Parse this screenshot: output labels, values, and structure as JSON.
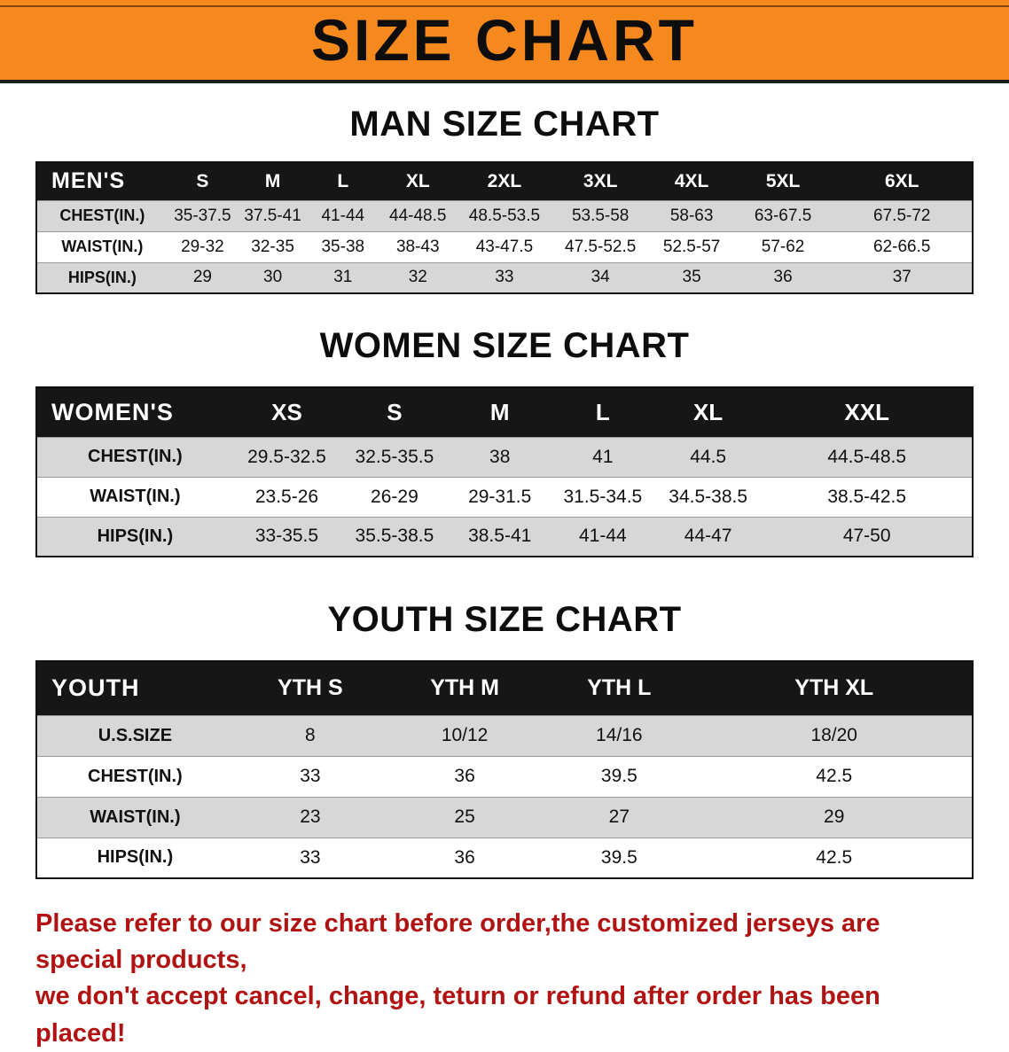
{
  "banner": {
    "title": "SIZE CHART"
  },
  "men": {
    "heading": "MAN SIZE CHART",
    "table": {
      "header": [
        "MEN'S",
        "S",
        "M",
        "L",
        "XL",
        "2XL",
        "3XL",
        "4XL",
        "5XL",
        "6XL"
      ],
      "rows": [
        [
          "CHEST(IN.)",
          "35-37.5",
          "37.5-41",
          "41-44",
          "44-48.5",
          "48.5-53.5",
          "53.5-58",
          "58-63",
          "63-67.5",
          "67.5-72"
        ],
        [
          "WAIST(IN.)",
          "29-32",
          "32-35",
          "35-38",
          "38-43",
          "43-47.5",
          "47.5-52.5",
          "52.5-57",
          "57-62",
          "62-66.5"
        ],
        [
          "HIPS(IN.)",
          "29",
          "30",
          "31",
          "32",
          "33",
          "34",
          "35",
          "36",
          "37"
        ]
      ]
    }
  },
  "women": {
    "heading": "WOMEN SIZE CHART",
    "table": {
      "header": [
        "WOMEN'S",
        "XS",
        "S",
        "M",
        "L",
        "XL",
        "XXL"
      ],
      "rows": [
        [
          "CHEST(IN.)",
          "29.5-32.5",
          "32.5-35.5",
          "38",
          "41",
          "44.5",
          "44.5-48.5"
        ],
        [
          "WAIST(IN.)",
          "23.5-26",
          "26-29",
          "29-31.5",
          "31.5-34.5",
          "34.5-38.5",
          "38.5-42.5"
        ],
        [
          "HIPS(IN.)",
          "33-35.5",
          "35.5-38.5",
          "38.5-41",
          "41-44",
          "44-47",
          "47-50"
        ]
      ]
    }
  },
  "youth": {
    "heading": "YOUTH SIZE CHART",
    "table": {
      "header": [
        "YOUTH",
        "YTH S",
        "YTH M",
        "YTH L",
        "YTH XL"
      ],
      "rows": [
        [
          "U.S.SIZE",
          "8",
          "10/12",
          "14/16",
          "18/20"
        ],
        [
          "CHEST(IN.)",
          "33",
          "36",
          "39.5",
          "42.5"
        ],
        [
          "WAIST(IN.)",
          "23",
          "25",
          "27",
          "29"
        ],
        [
          "HIPS(IN.)",
          "33",
          "36",
          "39.5",
          "42.5"
        ]
      ]
    }
  },
  "disclaimer": {
    "line1": "Please refer to our size chart before order,the customized jerseys are special products,",
    "line2": "we don't accept cancel, change, teturn or refund after order has been placed!"
  },
  "colors": {
    "banner_bg": "#f6891d",
    "table_header_bg": "#161616",
    "row_alt": "#d7d7d7",
    "disclaimer_red": "#b11212"
  }
}
